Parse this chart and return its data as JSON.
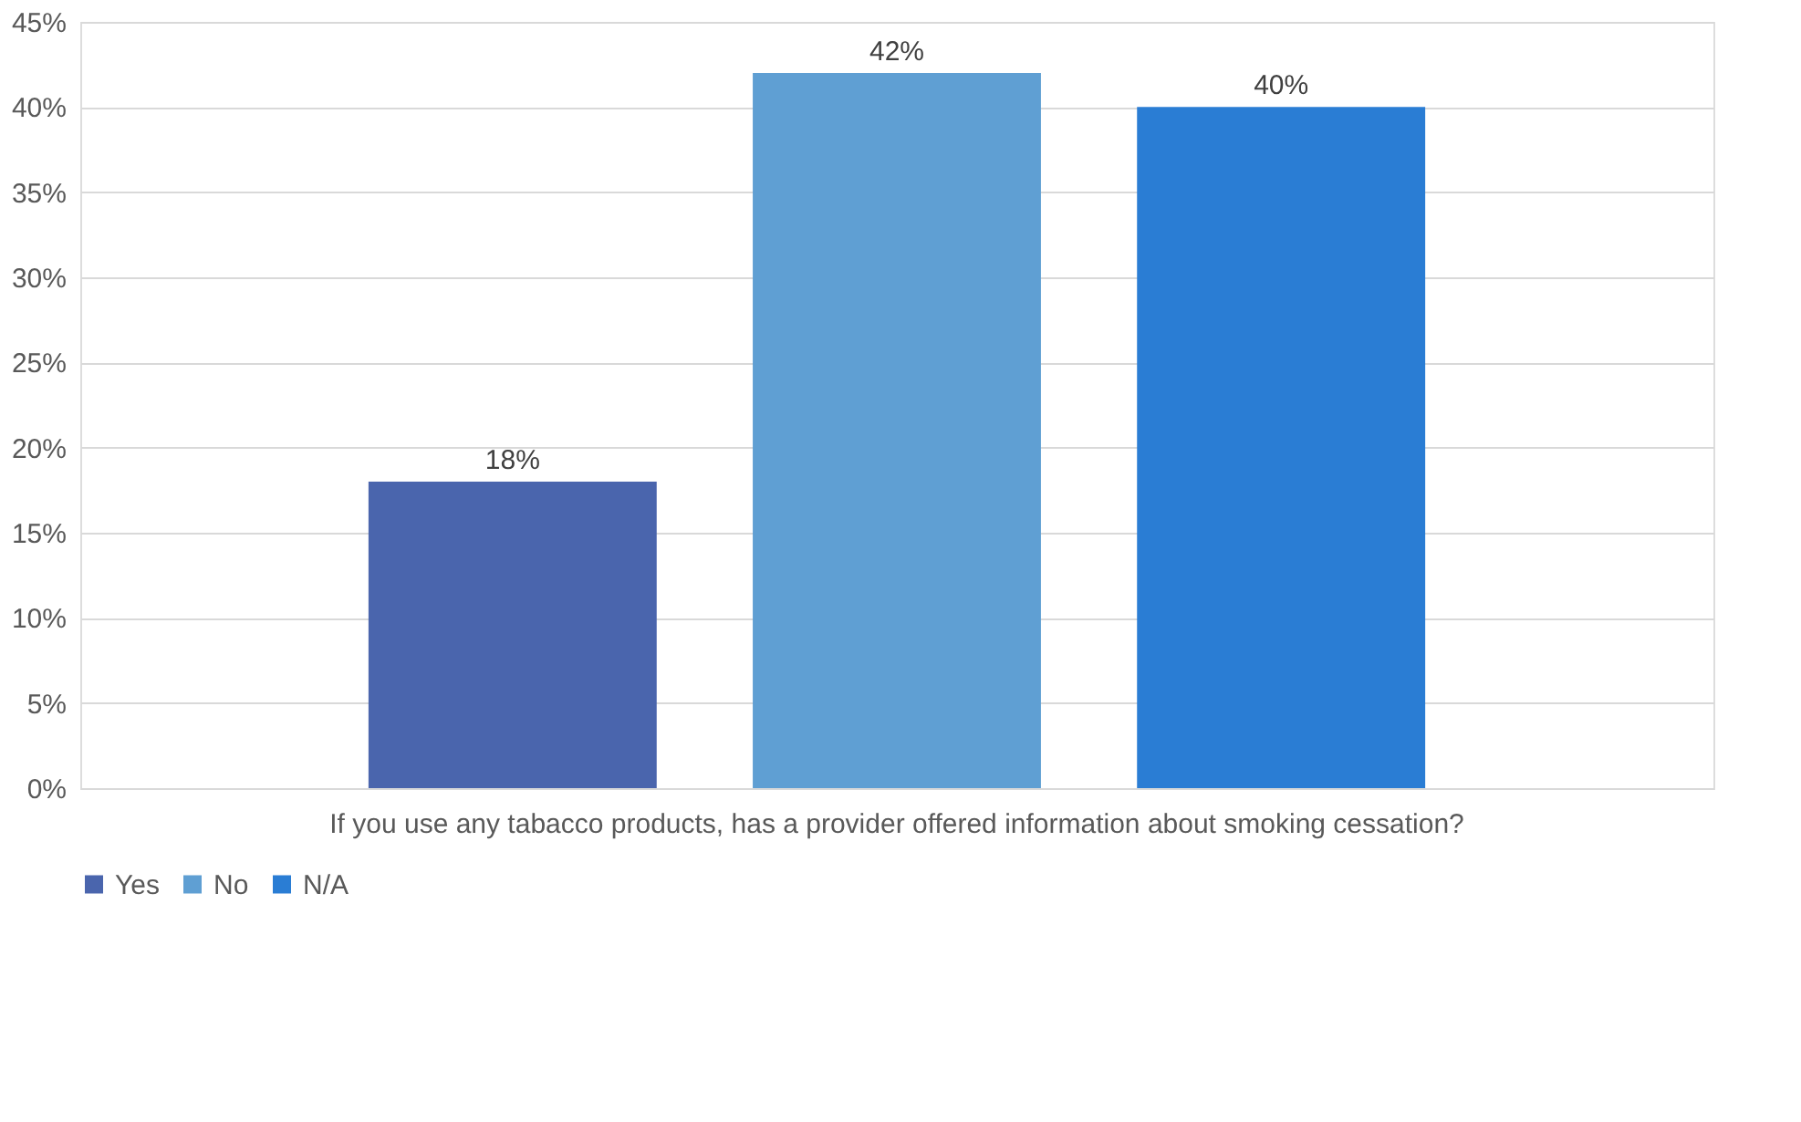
{
  "chart_data": {
    "type": "bar",
    "categories": [
      "If you use any tabacco products, has a provider offered information about smoking cessation?"
    ],
    "series": [
      {
        "name": "Yes",
        "color": "#4a65ad",
        "values": [
          18
        ],
        "value_labels": [
          "18%"
        ]
      },
      {
        "name": "No",
        "color": "#5f9fd3",
        "values": [
          42
        ],
        "value_labels": [
          "42%"
        ]
      },
      {
        "name": "N/A",
        "color": "#2a7dd4",
        "values": [
          40
        ],
        "value_labels": [
          "40%"
        ]
      }
    ],
    "ylim": [
      0,
      45
    ],
    "yticks": [
      {
        "value": 0,
        "label": "0%"
      },
      {
        "value": 5,
        "label": "5%"
      },
      {
        "value": 10,
        "label": "10%"
      },
      {
        "value": 15,
        "label": "15%"
      },
      {
        "value": 20,
        "label": "20%"
      },
      {
        "value": 25,
        "label": "25%"
      },
      {
        "value": 30,
        "label": "30%"
      },
      {
        "value": 35,
        "label": "35%"
      },
      {
        "value": 40,
        "label": "40%"
      },
      {
        "value": 45,
        "label": "45%"
      }
    ],
    "grid": "y",
    "legend": "bottom"
  }
}
